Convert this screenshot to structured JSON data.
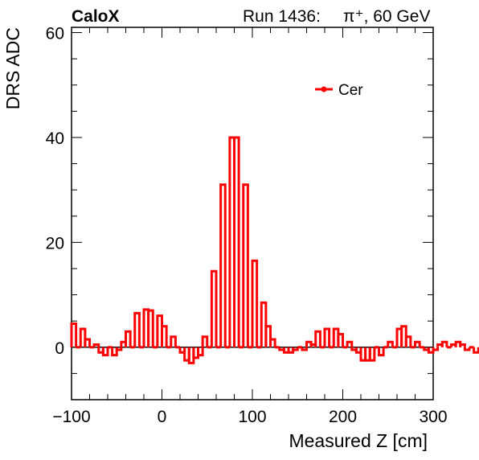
{
  "header": {
    "brand": "CaloX",
    "run": "Run 1436:",
    "particle": "π⁺, 60 GeV"
  },
  "chart_data": {
    "type": "step",
    "xlabel": "Measured Z [cm]",
    "ylabel": "DRS ADC",
    "xlim": [
      -100,
      300
    ],
    "ylim": [
      -10,
      61
    ],
    "x_ticks": [
      -100,
      0,
      100,
      200,
      300
    ],
    "y_ticks": [
      0,
      20,
      40,
      60
    ],
    "tick_labels_x": [
      "−100",
      "0",
      "100",
      "200",
      "300"
    ],
    "tick_labels_y": [
      "0",
      "20",
      "40",
      "60"
    ],
    "bin_edges_start": -100,
    "bin_width": 5,
    "color": "#ff0000",
    "legend": {
      "position": "top-right",
      "entries": [
        "Cer"
      ]
    },
    "series": [
      {
        "name": "Cer",
        "values": [
          4.5,
          0.0,
          3.5,
          1.5,
          0.0,
          0.5,
          -1.0,
          -1.5,
          0.0,
          -1.5,
          -0.5,
          1.0,
          3.0,
          0.0,
          6.5,
          0.0,
          7.2,
          7.0,
          0.0,
          6.0,
          4.0,
          0.0,
          2.0,
          0.0,
          -1.0,
          -2.5,
          -3.0,
          -2.0,
          -1.5,
          2.0,
          0.0,
          14.5,
          0.0,
          31.0,
          0.0,
          40.0,
          40.0,
          0.0,
          31.0,
          0.0,
          16.5,
          0.0,
          8.5,
          4.0,
          1.5,
          0.0,
          -0.5,
          -1.0,
          -1.0,
          -0.5,
          0.0,
          -0.5,
          1.0,
          0.5,
          3.0,
          0.0,
          3.5,
          0.0,
          3.5,
          2.5,
          0.0,
          1.0,
          -0.5,
          -1.0,
          -2.5,
          -2.5,
          -2.5,
          0.0,
          -1.5,
          0.0,
          1.0,
          0.0,
          3.5,
          4.0,
          2.0,
          0.0,
          1.0,
          0.0,
          -0.5,
          -1.0,
          -0.5,
          0.5,
          1.0,
          0.0,
          0.5,
          1.0,
          0.5,
          -0.5,
          0.0,
          -1.0
        ]
      }
    ]
  }
}
